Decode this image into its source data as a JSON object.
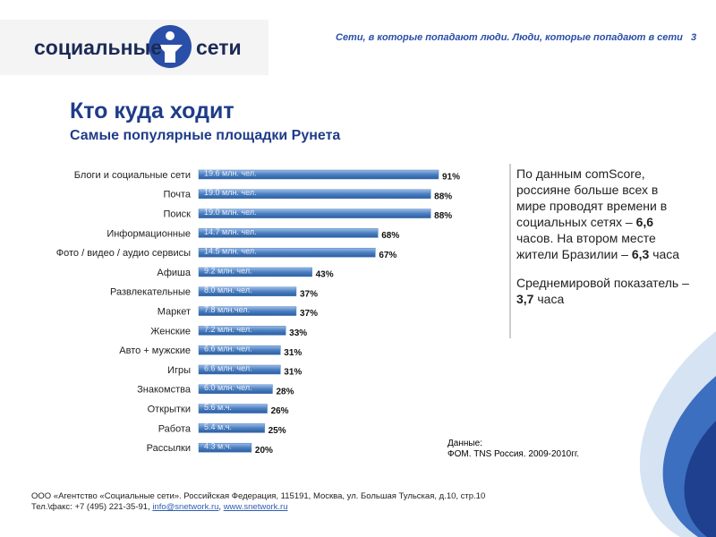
{
  "header": {
    "logo_left": "социальные",
    "logo_right": "сети",
    "tagline": "Сети, в которые попадают люди. Люди, которые попадают в сети",
    "page": "3"
  },
  "title": "Кто куда ходит",
  "subtitle": "Самые популярные площадки Рунета",
  "chart_data": {
    "type": "bar",
    "orientation": "horizontal",
    "color": "#4a7fc1",
    "categories": [
      "Блоги и социальные сети",
      "Почта",
      "Поиск",
      "Информационные",
      "Фото / видео / аудио сервисы",
      "Афиша",
      "Развлекательные",
      "Маркет",
      "Женские",
      "Авто + мужские",
      "Игры",
      "Знакомства",
      "Открытки",
      "Работа",
      "Рассылки"
    ],
    "values": [
      91,
      88,
      88,
      68,
      67,
      43,
      37,
      37,
      33,
      31,
      31,
      28,
      26,
      25,
      20
    ],
    "value_labels": [
      "91%",
      "88%",
      "88%",
      "68%",
      "67%",
      "43%",
      "37%",
      "37%",
      "33%",
      "31%",
      "31%",
      "28%",
      "26%",
      "25%",
      "20%"
    ],
    "inner_labels": [
      "19.6 млн. чел.",
      "19.0 млн. чел.",
      "19.0 млн. чел.",
      "14.7 млн. чел.",
      "14.5 млн. чел.",
      "9.2 млн. чел.",
      "8.0 млн. чел.",
      "7.8 млн.чел.",
      "7.2 млн. чел.",
      "6.6 млн. чел.",
      "6.6 млн. чел.",
      "6.0 млн. чел.",
      "5.6 м.ч.",
      "5.4 м.ч.",
      "4.3 м.ч."
    ]
  },
  "sidebar": {
    "paragraphs": [
      [
        {
          "text": "По данным comScore, россияне больше всех в мире проводят времени в социальных сетях – ",
          "bold": false
        },
        {
          "text": "6,6",
          "bold": true
        },
        {
          "text": " часов. На втором месте жители Бразилии – ",
          "bold": false
        },
        {
          "text": "6,3",
          "bold": true
        },
        {
          "text": " часа",
          "bold": false
        }
      ],
      [
        {
          "text": "Среднемировой показатель – ",
          "bold": false
        },
        {
          "text": "3,7",
          "bold": true
        },
        {
          "text": " часа",
          "bold": false
        }
      ]
    ]
  },
  "source": {
    "label": "Данные:",
    "text": "ФОМ. TNS Россия. 2009-2010гг."
  },
  "footer": {
    "address": "ООО «Агентство «Социальные сети». Российская Федерация, 115191, Москва, ул. Большая Тульская, д.10, стр.10",
    "phone": "Тел.\\факс: +7 (495) 221-35-91, ",
    "email": "info@snetwork.ru",
    "sep": ", ",
    "site": "www.snetwork.ru"
  }
}
